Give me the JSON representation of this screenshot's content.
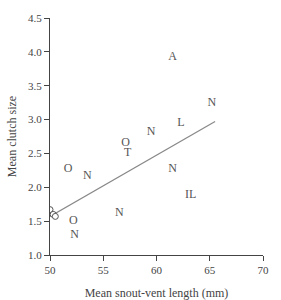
{
  "chart_data": {
    "type": "scatter",
    "xlabel": "Mean snout-vent length (mm)",
    "ylabel": "Mean clutch size",
    "xlim": [
      50,
      70
    ],
    "xticks": [
      50,
      55,
      60,
      65,
      70
    ],
    "ylim": [
      1.0,
      4.5
    ],
    "yticks": [
      {
        "value": 1.0,
        "label": "1.0"
      },
      1.5,
      {
        "value": 2.0,
        "label": "2.0"
      },
      2.5,
      {
        "value": 3.0,
        "label": "3.0"
      },
      3.5,
      {
        "value": 4.0,
        "label": "4.0"
      },
      4.5
    ],
    "grid": false,
    "series": [
      {
        "type": "line",
        "color": "#888888",
        "x": [
          50.0,
          65.5
        ],
        "values": [
          1.57,
          2.97
        ]
      },
      {
        "type": "scatter",
        "marker": "open circle",
        "color": "#555555",
        "x": [
          50.0,
          50.3,
          50.5
        ],
        "values": [
          1.67,
          1.6,
          1.57
        ]
      },
      {
        "type": "scatter",
        "marker": "text",
        "color": "#555555",
        "x": [
          51.7,
          52.2,
          52.3,
          53.5,
          56.5,
          57.1,
          57.3,
          59.5,
          61.5,
          62.3,
          61.5,
          63.2,
          65.2
        ],
        "values": [
          2.27,
          1.5,
          1.3,
          2.17,
          1.62,
          2.65,
          2.5,
          2.82,
          3.93,
          2.95,
          2.27,
          1.88,
          3.25
        ],
        "labels": [
          "O",
          "O",
          "N",
          "N",
          "N",
          "O",
          "T",
          "N",
          "A",
          "L",
          "N",
          "IL",
          "N"
        ]
      }
    ]
  }
}
